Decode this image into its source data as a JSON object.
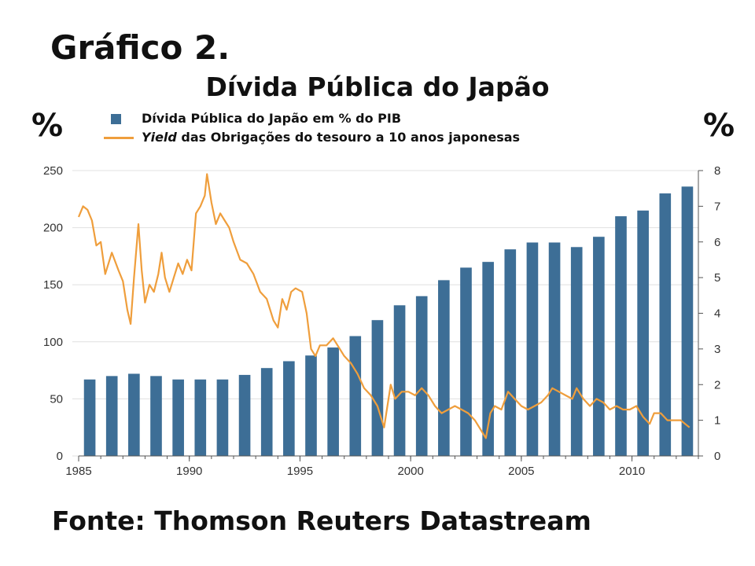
{
  "heading": "Gráfico 2.",
  "colors": {
    "bars": "#3d6e96",
    "line": "#ef9e3c",
    "grid": "#e0e0e0",
    "axis": "#555555"
  },
  "units": {
    "left": "%",
    "right": "%"
  },
  "source": "Fonte: Thomson Reuters Datastream",
  "chart_data": {
    "type": "bar",
    "title": "Dívida Pública do Japão",
    "legend_position": "top",
    "grid": true,
    "series": [
      {
        "name": "Dívida Pública do Japão em % do PIB",
        "type": "bar",
        "axis": "left",
        "x": [
          1985,
          1986,
          1987,
          1988,
          1989,
          1990,
          1991,
          1992,
          1993,
          1994,
          1995,
          1996,
          1997,
          1998,
          1999,
          2000,
          2001,
          2002,
          2003,
          2004,
          2005,
          2006,
          2007,
          2008,
          2009,
          2010,
          2011,
          2012
        ],
        "values": [
          67,
          70,
          72,
          70,
          67,
          67,
          67,
          71,
          77,
          83,
          88,
          95,
          105,
          119,
          132,
          140,
          154,
          165,
          170,
          181,
          187,
          187,
          183,
          192,
          210,
          215,
          230,
          236
        ]
      },
      {
        "name": "Yield das Obrigações do tesouro a 10 anos japonesas",
        "name_parts": {
          "italic": "Yield",
          "rest": " das Obrigações do tesouro a 10 anos japonesas"
        },
        "type": "line",
        "axis": "right",
        "points": [
          [
            1985.0,
            6.7
          ],
          [
            1985.2,
            7.0
          ],
          [
            1985.4,
            6.9
          ],
          [
            1985.6,
            6.6
          ],
          [
            1985.8,
            5.9
          ],
          [
            1986.0,
            6.0
          ],
          [
            1986.2,
            5.1
          ],
          [
            1986.5,
            5.7
          ],
          [
            1986.8,
            5.2
          ],
          [
            1987.0,
            4.9
          ],
          [
            1987.2,
            4.1
          ],
          [
            1987.35,
            3.7
          ],
          [
            1987.5,
            5.0
          ],
          [
            1987.7,
            6.5
          ],
          [
            1987.85,
            5.2
          ],
          [
            1988.0,
            4.3
          ],
          [
            1988.2,
            4.8
          ],
          [
            1988.4,
            4.6
          ],
          [
            1988.6,
            5.1
          ],
          [
            1988.75,
            5.7
          ],
          [
            1988.9,
            5.0
          ],
          [
            1989.1,
            4.6
          ],
          [
            1989.3,
            5.0
          ],
          [
            1989.5,
            5.4
          ],
          [
            1989.7,
            5.1
          ],
          [
            1989.9,
            5.5
          ],
          [
            1990.1,
            5.2
          ],
          [
            1990.3,
            6.8
          ],
          [
            1990.5,
            7.0
          ],
          [
            1990.7,
            7.3
          ],
          [
            1990.8,
            7.9
          ],
          [
            1991.0,
            7.1
          ],
          [
            1991.2,
            6.5
          ],
          [
            1991.4,
            6.8
          ],
          [
            1991.6,
            6.6
          ],
          [
            1991.8,
            6.4
          ],
          [
            1992.0,
            6.0
          ],
          [
            1992.3,
            5.5
          ],
          [
            1992.6,
            5.4
          ],
          [
            1992.9,
            5.1
          ],
          [
            1993.2,
            4.6
          ],
          [
            1993.5,
            4.4
          ],
          [
            1993.8,
            3.8
          ],
          [
            1994.0,
            3.6
          ],
          [
            1994.2,
            4.4
          ],
          [
            1994.4,
            4.1
          ],
          [
            1994.6,
            4.6
          ],
          [
            1994.8,
            4.7
          ],
          [
            1995.1,
            4.6
          ],
          [
            1995.3,
            4.0
          ],
          [
            1995.5,
            3.0
          ],
          [
            1995.7,
            2.8
          ],
          [
            1995.9,
            3.1
          ],
          [
            1996.2,
            3.1
          ],
          [
            1996.5,
            3.3
          ],
          [
            1996.8,
            3.0
          ],
          [
            1997.0,
            2.8
          ],
          [
            1997.3,
            2.6
          ],
          [
            1997.6,
            2.3
          ],
          [
            1997.9,
            1.9
          ],
          [
            1998.2,
            1.7
          ],
          [
            1998.5,
            1.4
          ],
          [
            1998.8,
            0.8
          ],
          [
            1998.9,
            1.2
          ],
          [
            1999.1,
            2.0
          ],
          [
            1999.3,
            1.6
          ],
          [
            1999.6,
            1.8
          ],
          [
            1999.9,
            1.8
          ],
          [
            2000.2,
            1.7
          ],
          [
            2000.5,
            1.9
          ],
          [
            2000.8,
            1.7
          ],
          [
            2001.1,
            1.4
          ],
          [
            2001.4,
            1.2
          ],
          [
            2001.7,
            1.3
          ],
          [
            2002.0,
            1.4
          ],
          [
            2002.3,
            1.3
          ],
          [
            2002.6,
            1.2
          ],
          [
            2002.9,
            1.0
          ],
          [
            2003.2,
            0.7
          ],
          [
            2003.4,
            0.5
          ],
          [
            2003.6,
            1.2
          ],
          [
            2003.8,
            1.4
          ],
          [
            2004.1,
            1.3
          ],
          [
            2004.4,
            1.8
          ],
          [
            2004.7,
            1.6
          ],
          [
            2005.0,
            1.4
          ],
          [
            2005.3,
            1.3
          ],
          [
            2005.6,
            1.4
          ],
          [
            2005.9,
            1.5
          ],
          [
            2006.2,
            1.7
          ],
          [
            2006.4,
            1.9
          ],
          [
            2006.7,
            1.8
          ],
          [
            2007.0,
            1.7
          ],
          [
            2007.3,
            1.6
          ],
          [
            2007.5,
            1.9
          ],
          [
            2007.8,
            1.6
          ],
          [
            2008.1,
            1.4
          ],
          [
            2008.4,
            1.6
          ],
          [
            2008.7,
            1.5
          ],
          [
            2009.0,
            1.3
          ],
          [
            2009.3,
            1.4
          ],
          [
            2009.6,
            1.3
          ],
          [
            2009.9,
            1.3
          ],
          [
            2010.2,
            1.4
          ],
          [
            2010.5,
            1.1
          ],
          [
            2010.8,
            0.9
          ],
          [
            2011.0,
            1.2
          ],
          [
            2011.3,
            1.2
          ],
          [
            2011.6,
            1.0
          ],
          [
            2011.9,
            1.0
          ],
          [
            2012.2,
            1.0
          ],
          [
            2012.4,
            0.9
          ],
          [
            2012.6,
            0.8
          ]
        ]
      }
    ],
    "x_ticks": [
      "1985",
      "1990",
      "1995",
      "2000",
      "2005",
      "2010"
    ],
    "y_left": {
      "ticks": [
        "0",
        "50",
        "100",
        "150",
        "200",
        "250"
      ],
      "ylim": [
        0,
        250
      ]
    },
    "y_right": {
      "ticks": [
        "0",
        "1",
        "2",
        "3",
        "4",
        "5",
        "6",
        "7",
        "8"
      ],
      "ylim": [
        0,
        8
      ]
    },
    "xlim": [
      1985,
      2013
    ]
  }
}
